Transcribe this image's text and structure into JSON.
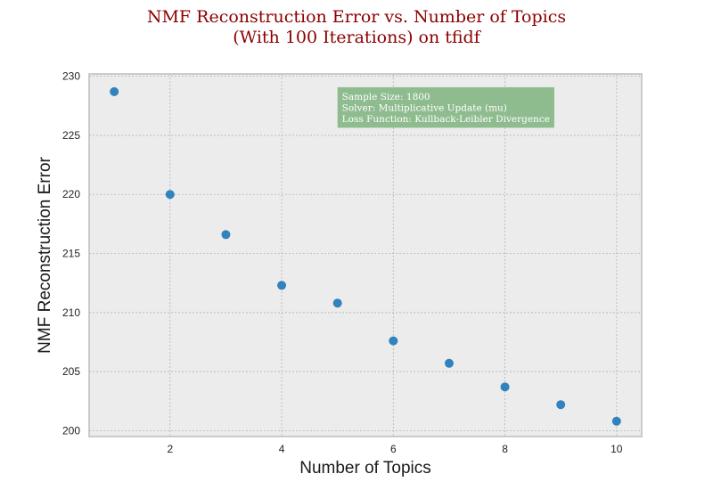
{
  "chart_data": {
    "type": "scatter",
    "title_line1": "NMF Reconstruction Error vs. Number of Topics",
    "title_line2": "(With 100 Iterations) on tfidf",
    "xlabel": "Number of Topics",
    "ylabel": "NMF Reconstruction Error",
    "x": [
      1,
      2,
      3,
      4,
      5,
      6,
      7,
      8,
      9,
      10
    ],
    "y": [
      228.7,
      220.0,
      216.6,
      212.3,
      210.8,
      207.6,
      205.7,
      203.7,
      202.2,
      200.8
    ],
    "xlim": [
      0.55,
      10.45
    ],
    "ylim": [
      199.5,
      230.2
    ],
    "xticks": [
      2,
      4,
      6,
      8,
      10
    ],
    "yticks": [
      200,
      205,
      210,
      215,
      220,
      225,
      230
    ],
    "grid": true,
    "marker_color": "#3182bd",
    "plot_background": "#ececec",
    "annotation": {
      "lines": [
        "Sample Size: 1800",
        "Solver: Multiplicative Update (mu)",
        "Loss Function: Kullback-Leibler Divergence"
      ],
      "background": "#8fbc8f",
      "anchor_x": 5,
      "anchor_y": 229.0
    }
  }
}
